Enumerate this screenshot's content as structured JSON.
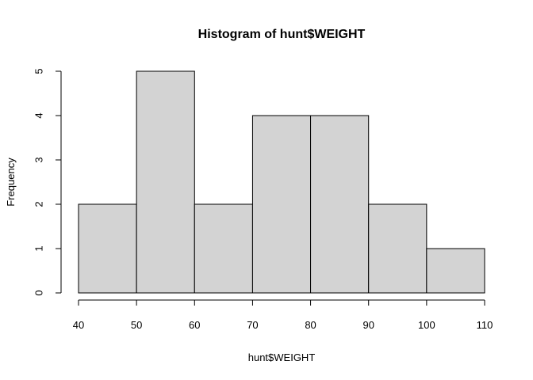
{
  "chart_data": {
    "type": "bar",
    "title": "Histogram of hunt$WEIGHT",
    "xlabel": "hunt$WEIGHT",
    "ylabel": "Frequency",
    "bins": [
      {
        "start": 40,
        "end": 50,
        "count": 2
      },
      {
        "start": 50,
        "end": 60,
        "count": 5
      },
      {
        "start": 60,
        "end": 70,
        "count": 2
      },
      {
        "start": 70,
        "end": 80,
        "count": 4
      },
      {
        "start": 80,
        "end": 90,
        "count": 4
      },
      {
        "start": 90,
        "end": 100,
        "count": 2
      },
      {
        "start": 100,
        "end": 110,
        "count": 1
      }
    ],
    "xlim": [
      40,
      110
    ],
    "ylim": [
      0,
      5
    ],
    "x_ticks": [
      "40",
      "50",
      "60",
      "70",
      "80",
      "90",
      "100",
      "110"
    ],
    "y_ticks": [
      "0",
      "1",
      "2",
      "3",
      "4",
      "5"
    ],
    "grid": false,
    "colors": {
      "bar_fill": "#d3d3d3",
      "bar_stroke": "#000000"
    }
  }
}
